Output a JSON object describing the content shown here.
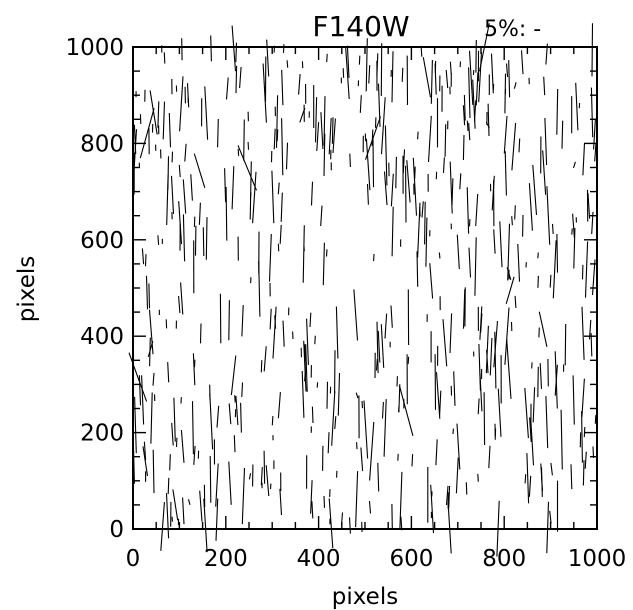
{
  "chart_data": {
    "type": "quiver",
    "title": "F140W",
    "annotation": "5%: -",
    "xlabel": "pixels",
    "ylabel": "pixels",
    "xlim": [
      0,
      1000
    ],
    "ylim": [
      0,
      1000
    ],
    "x_major_ticks": [
      0,
      200,
      400,
      600,
      800,
      1000
    ],
    "y_major_ticks": [
      0,
      200,
      400,
      600,
      800,
      1000
    ],
    "x_tick_labels": [
      "0",
      "200",
      "400",
      "600",
      "800",
      "1000"
    ],
    "y_tick_labels": [
      "0",
      "200",
      "400",
      "600",
      "800",
      "1000"
    ],
    "minor_tick_step": 50,
    "grid": false,
    "vector_orientation": "near-vertical",
    "vector_length_range": [
      5,
      60
    ],
    "seed": 140,
    "colors": {
      "foreground": "#000000",
      "background": "#ffffff"
    }
  }
}
